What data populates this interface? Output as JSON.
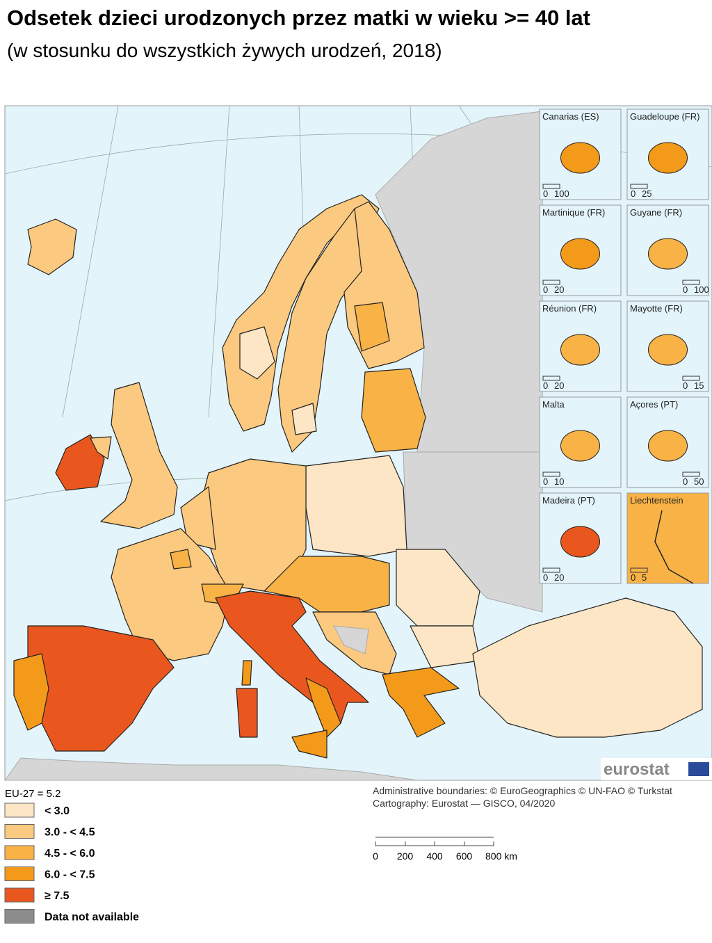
{
  "title": "Odsetek dzieci urodzonych przez matki w wieku >= 40 lat",
  "subtitle": "(w stosunku do wszystkich żywych urodzeń, 2018)",
  "insets": [
    {
      "name": "Canarias (ES)",
      "scale": [
        "0",
        "100"
      ]
    },
    {
      "name": "Guadeloupe (FR)",
      "scale": [
        "0",
        "25"
      ]
    },
    {
      "name": "Martinique (FR)",
      "scale": [
        "0",
        "20"
      ]
    },
    {
      "name": "Guyane (FR)",
      "scale": [
        "0",
        "100"
      ]
    },
    {
      "name": "Réunion (FR)",
      "scale": [
        "0",
        "20"
      ]
    },
    {
      "name": "Mayotte (FR)",
      "scale": [
        "0",
        "15"
      ]
    },
    {
      "name": "Malta",
      "scale": [
        "0",
        "10"
      ]
    },
    {
      "name": "Açores (PT)",
      "scale": [
        "0",
        "50"
      ]
    },
    {
      "name": "Madeira (PT)",
      "scale": [
        "0",
        "20"
      ]
    },
    {
      "name": "Liechtenstein",
      "scale": [
        "0",
        "5"
      ]
    }
  ],
  "logo": "eurostat",
  "legend": {
    "note": "EU-27 = 5.2",
    "items": [
      {
        "label": "< 3.0",
        "color": "#fde6c6"
      },
      {
        "label": "3.0 - < 4.5",
        "color": "#fbc97f"
      },
      {
        "label": "4.5 - < 6.0",
        "color": "#f8b245"
      },
      {
        "label": "6.0 - < 7.5",
        "color": "#f39a1a"
      },
      {
        "label": "≥ 7.5",
        "color": "#e9571f"
      },
      {
        "label": "Data not available",
        "color": "#8c8c8c"
      }
    ]
  },
  "credits": [
    "Administrative boundaries: © EuroGeographics © UN-FAO © Turkstat",
    "Cartography: Eurostat — GISCO, 04/2020"
  ],
  "scale_bar": [
    "0",
    "200",
    "400",
    "600",
    "800 km"
  ]
}
